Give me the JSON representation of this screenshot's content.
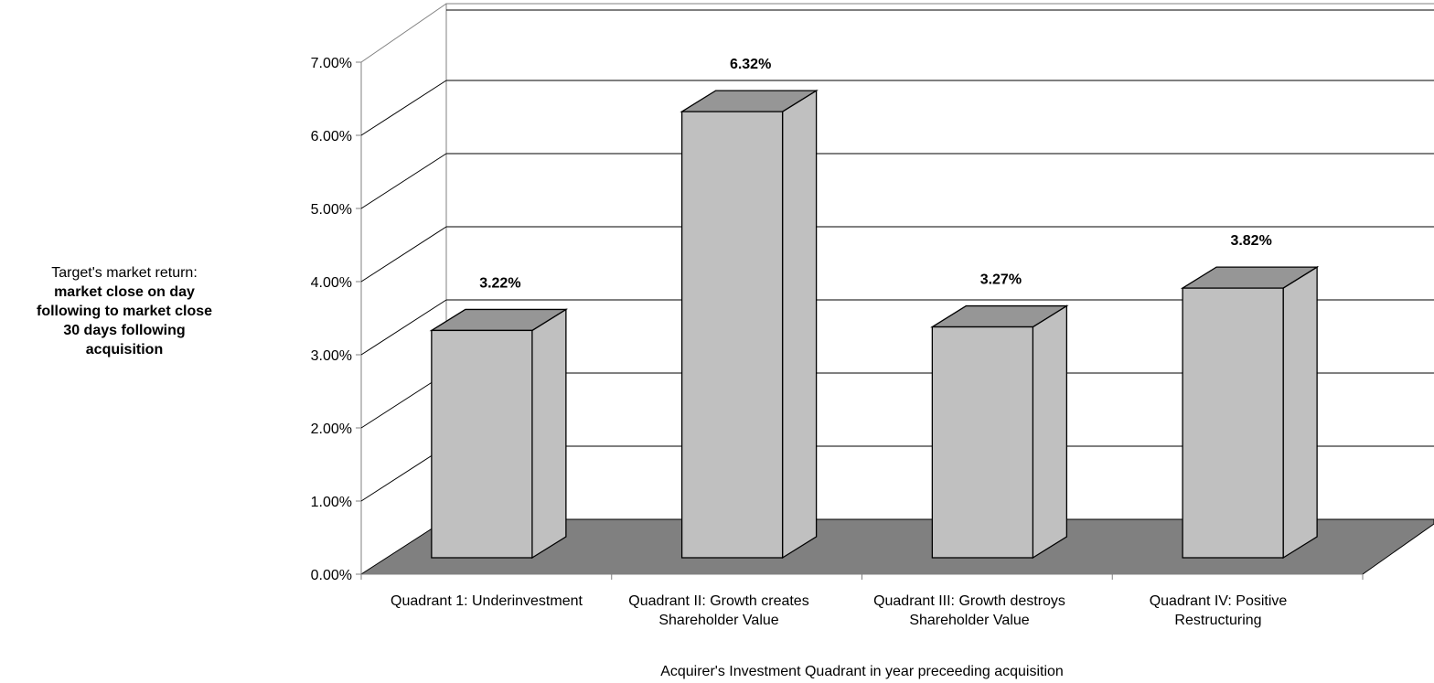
{
  "chart_data": {
    "type": "bar",
    "style": "3d-column",
    "categories": [
      "Quadrant 1: Underinvestment",
      "Quadrant II: Growth creates Shareholder Value",
      "Quadrant III: Growth destroys Shareholder Value",
      "Quadrant IV: Positive Restructuring"
    ],
    "values": [
      3.22,
      6.32,
      3.27,
      3.82
    ],
    "data_labels": [
      "3.22%",
      "6.32%",
      "3.27%",
      "3.82%"
    ],
    "xlabel": "Acquirer's Investment Quadrant in year preceeding acquisition",
    "ylabel": {
      "line1": "Target's market return:",
      "line2": "market close on day",
      "line3": "following to market close",
      "line4": "30 days following",
      "line5": "acquisition"
    },
    "ylim": [
      0,
      7
    ],
    "yticks": [
      "0.00%",
      "1.00%",
      "2.00%",
      "3.00%",
      "4.00%",
      "5.00%",
      "6.00%",
      "7.00%"
    ],
    "grid": true,
    "legend": "none",
    "colors": {
      "bar_front": "#c0c0c0",
      "bar_top": "#969696",
      "bar_side": "#c0c0c0",
      "floor": "#808080",
      "grid": "#000000"
    }
  }
}
